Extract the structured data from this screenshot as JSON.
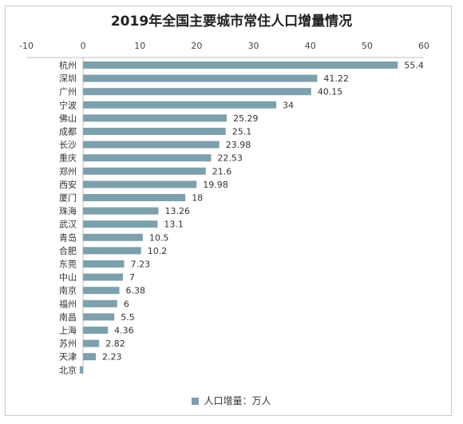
{
  "chart_data": {
    "type": "bar",
    "orientation": "horizontal",
    "title": "2019年全国主要城市常住人口增量情况",
    "categories": [
      "杭州",
      "深圳",
      "广州",
      "宁波",
      "佛山",
      "成都",
      "长沙",
      "重庆",
      "郑州",
      "西安",
      "厦门",
      "珠海",
      "武汉",
      "青岛",
      "合肥",
      "东莞",
      "中山",
      "南京",
      "福州",
      "南昌",
      "上海",
      "苏州",
      "天津",
      "北京"
    ],
    "series": [
      {
        "name": "人口增量：万人",
        "values": [
          55.4,
          41.22,
          40.15,
          34,
          25.29,
          25.1,
          23.98,
          22.53,
          21.6,
          19.98,
          18,
          13.26,
          13.1,
          10.5,
          10.2,
          7.23,
          7,
          6.38,
          6,
          5.5,
          4.36,
          2.82,
          2.23,
          -0.6
        ],
        "labels": [
          "55.4",
          "41.22",
          "40.15",
          "34",
          "25.29",
          "25.1",
          "23.98",
          "22.53",
          "21.6",
          "19.98",
          "18",
          "13.26",
          "13.1",
          "10.5",
          "10.2",
          "7.23",
          "7",
          "6.38",
          "6",
          "5.5",
          "4.36",
          "2.82",
          "2.23",
          ""
        ]
      }
    ],
    "x_axis": {
      "range": [
        -10,
        60
      ],
      "ticks": [
        "-10",
        "0",
        "10",
        "20",
        "30",
        "40",
        "50",
        "60"
      ],
      "position": "top"
    },
    "grid": false,
    "legend_position": "bottom",
    "bar_color": "#7da0ad"
  }
}
